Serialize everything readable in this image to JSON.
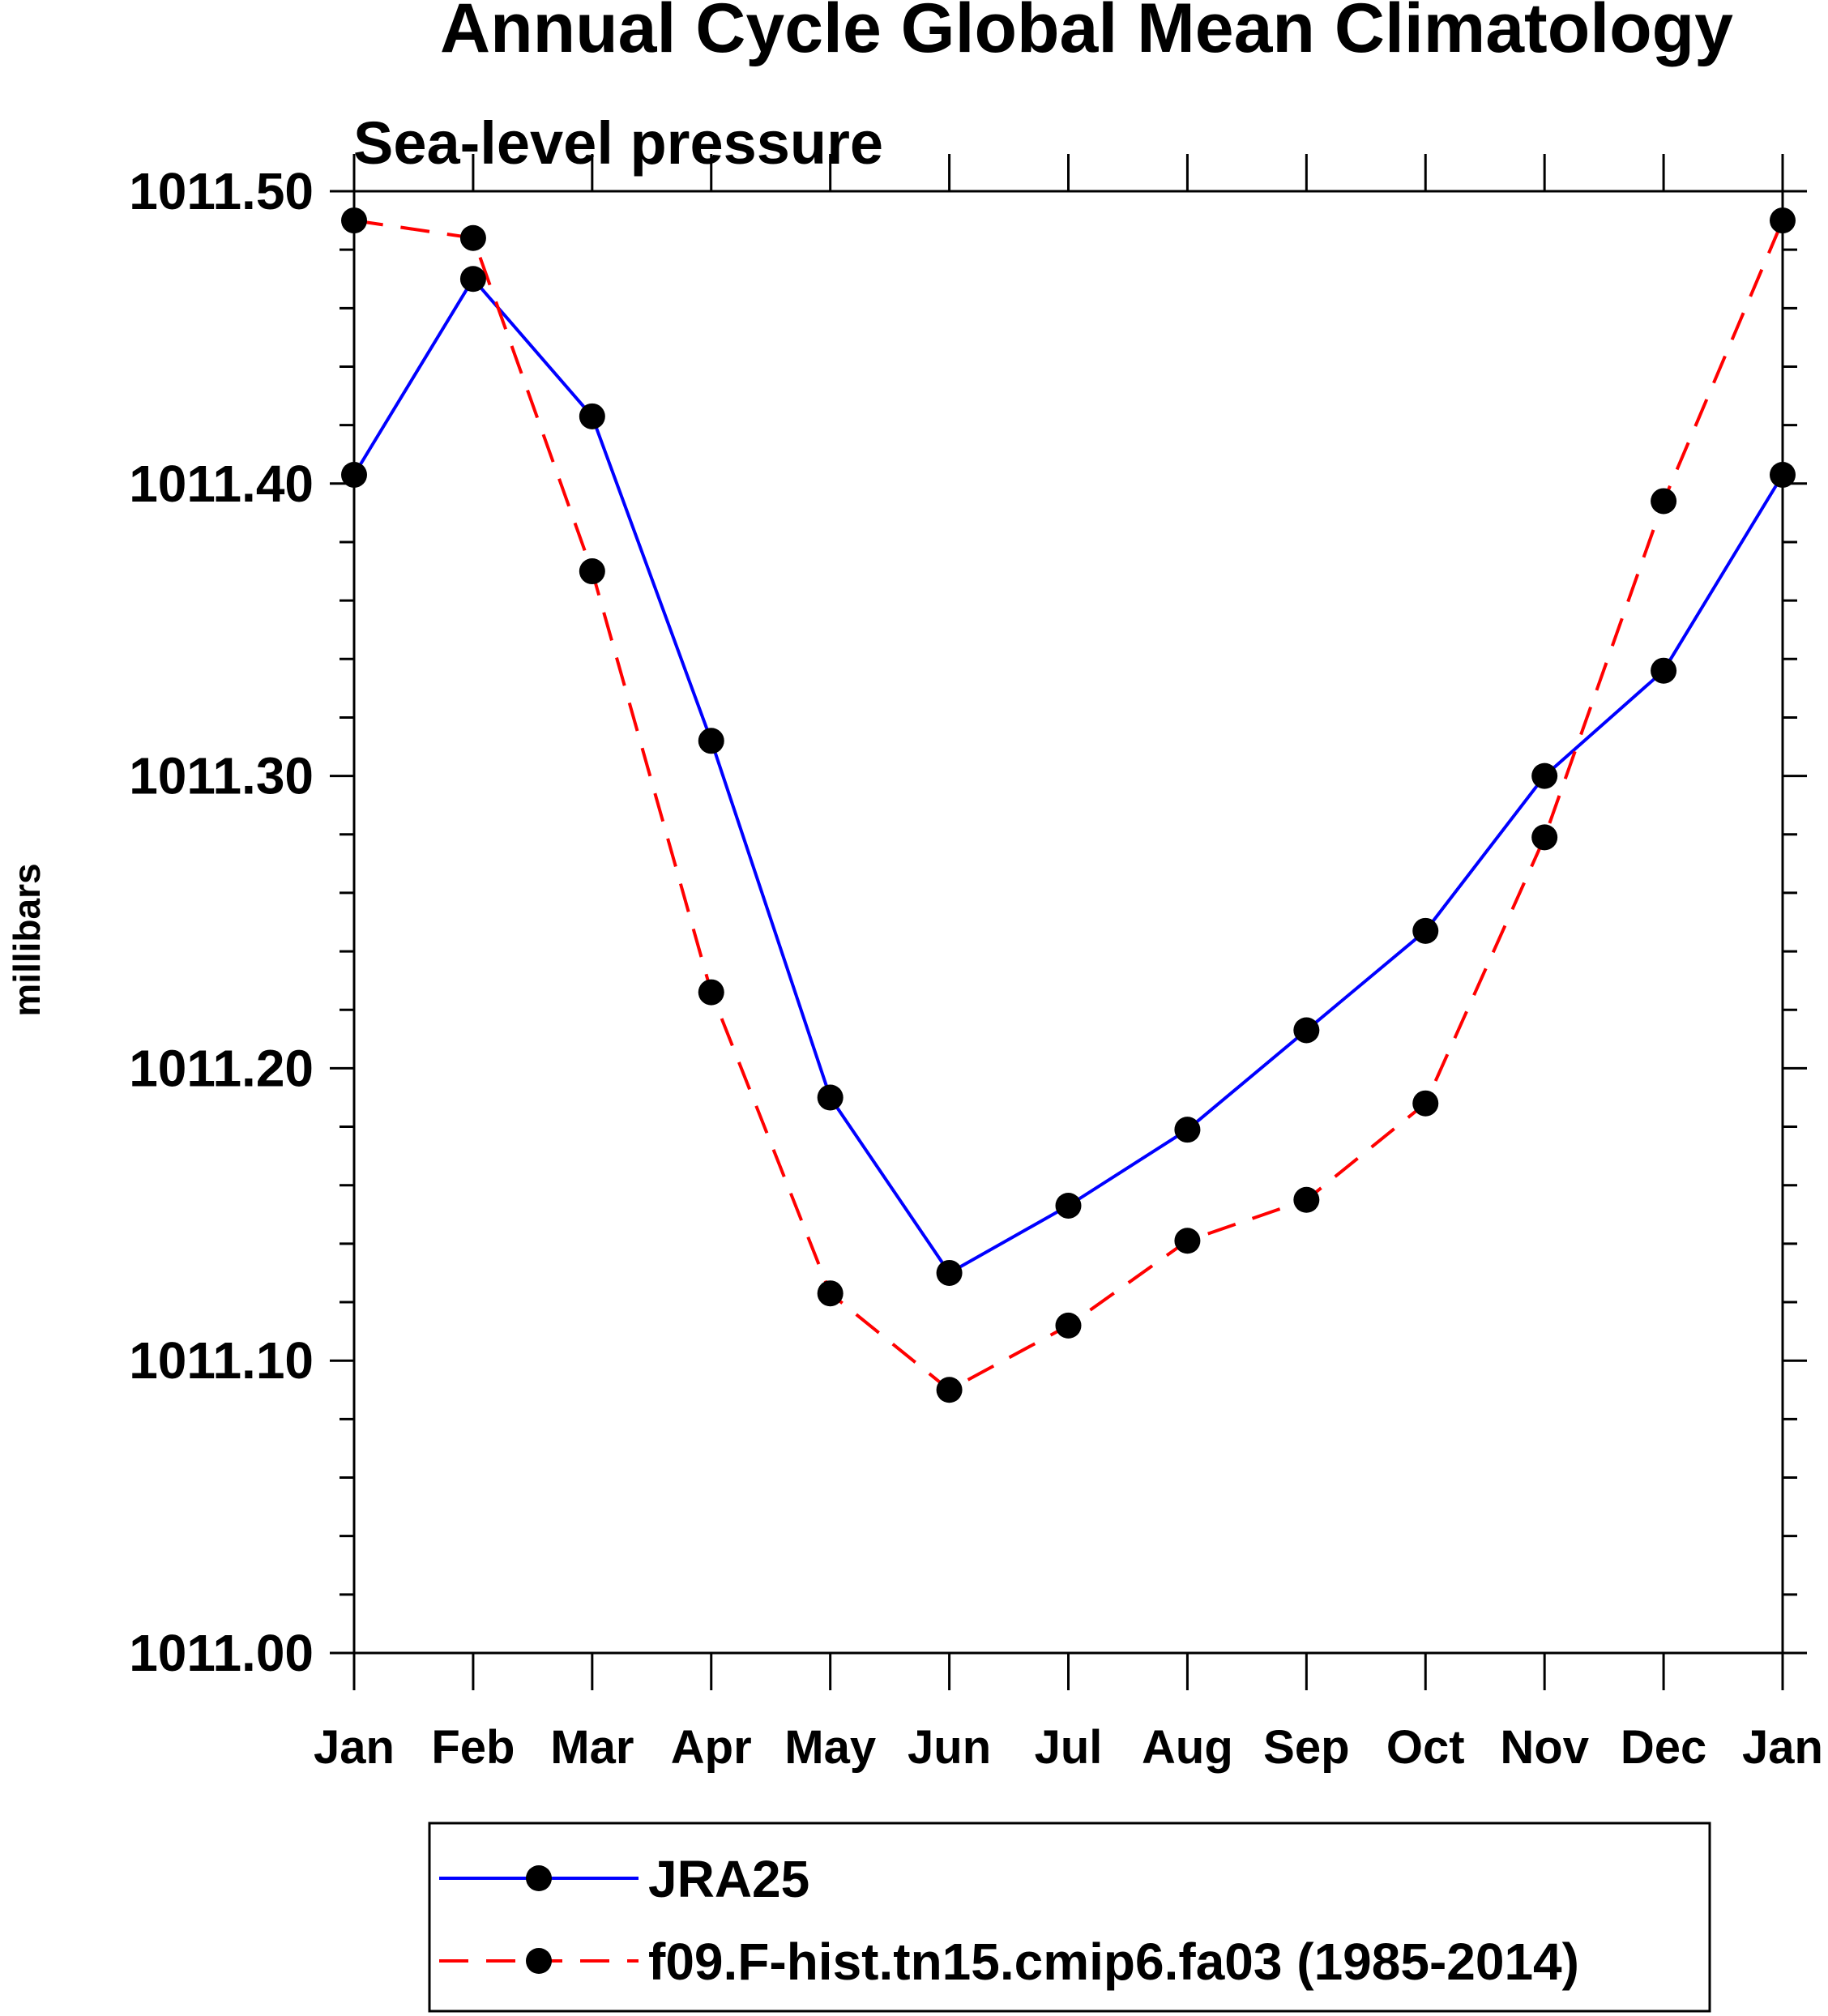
{
  "chart_data": {
    "type": "line",
    "title": "Annual Cycle Global Mean Climatology",
    "subtitle": "Sea-level pressure",
    "ylabel": "millibars",
    "xlabel": "",
    "ylim": [
      1011.0,
      1011.5
    ],
    "yticks": [
      "1011.00",
      "1011.10",
      "1011.20",
      "1011.30",
      "1011.40",
      "1011.50"
    ],
    "ytick_values": [
      1011.0,
      1011.1,
      1011.2,
      1011.3,
      1011.4,
      1011.5
    ],
    "categories": [
      "Jan",
      "Feb",
      "Mar",
      "Apr",
      "May",
      "Jun",
      "Jul",
      "Aug",
      "Sep",
      "Oct",
      "Nov",
      "Dec",
      "Jan"
    ],
    "series": [
      {
        "name": "JRA25",
        "color": "#0000ff",
        "dash": "solid",
        "values": [
          1011.403,
          1011.47,
          1011.423,
          1011.312,
          1011.19,
          1011.13,
          1011.153,
          1011.179,
          1011.213,
          1011.247,
          1011.3,
          1011.336,
          1011.403
        ]
      },
      {
        "name": "f09.F-hist.tn15.cmip6.fa03 (1985-2014)",
        "color": "#ff0000",
        "dash": "dashed",
        "values": [
          1011.49,
          1011.484,
          1011.37,
          1011.226,
          1011.123,
          1011.09,
          1011.112,
          1011.141,
          1011.155,
          1011.188,
          1011.279,
          1011.394,
          1011.49
        ]
      }
    ],
    "legend_position": "bottom"
  }
}
